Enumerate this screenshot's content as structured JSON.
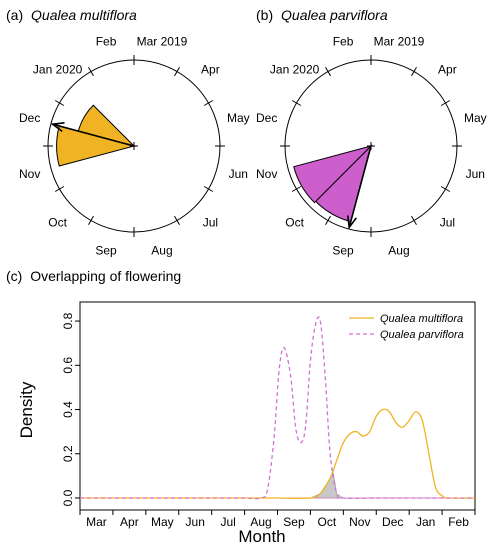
{
  "chart_data": [
    {
      "type": "circular-histogram",
      "panel_label": "(a)",
      "title": "Qualea multiflora",
      "month_labels": [
        "Mar 2019",
        "Apr",
        "May",
        "Jun",
        "Jul",
        "Aug",
        "Sep",
        "Oct",
        "Nov",
        "Dec",
        "Jan 2020",
        "Feb"
      ],
      "fill_color": "#F0B323",
      "mean_vector_month": "Dec",
      "wedges": [
        {
          "from_month": "Nov",
          "to_month": "Dec",
          "relative_length": 0.9
        },
        {
          "from_month": "Dec",
          "to_month": "Jan 2020",
          "relative_length": 0.67
        }
      ]
    },
    {
      "type": "circular-histogram",
      "panel_label": "(b)",
      "title": "Qualea parviflora",
      "month_labels": [
        "Mar 2019",
        "Apr",
        "May",
        "Jun",
        "Jul",
        "Aug",
        "Sep",
        "Oct",
        "Nov",
        "Dec",
        "Jan 2020",
        "Feb"
      ],
      "fill_color": "#CC5FCC",
      "mean_vector_month": "Sep",
      "wedges": [
        {
          "from_month": "Sep",
          "to_month": "Oct",
          "relative_length": 0.91
        },
        {
          "from_month": "Oct",
          "to_month": "Nov",
          "relative_length": 0.93
        }
      ]
    },
    {
      "type": "line",
      "panel_label": "(c)",
      "title": "Overlapping of flowering",
      "xlabel": "Month",
      "ylabel": "Density",
      "categories": [
        "Mar",
        "Apr",
        "May",
        "Jun",
        "Jul",
        "Aug",
        "Sep",
        "Oct",
        "Nov",
        "Dec",
        "Jan",
        "Feb"
      ],
      "xlim": [
        0,
        12
      ],
      "ylim": [
        0,
        0.85
      ],
      "yticks": [
        "0.0",
        "0.2",
        "0.4",
        "0.6",
        "0.8"
      ],
      "ytick_values": [
        0,
        0.2,
        0.4,
        0.6,
        0.8
      ],
      "legend_position": "top-right",
      "overlap_fill": "#c8c8c8",
      "series": [
        {
          "name": "Qualea multiflora",
          "color": "#F0B323",
          "dash": "solid",
          "x": [
            0,
            1,
            2,
            3,
            4,
            5,
            6,
            7.0,
            7.3,
            7.6,
            7.8,
            8.0,
            8.2,
            8.4,
            8.6,
            8.8,
            9.0,
            9.2,
            9.4,
            9.6,
            9.8,
            10.0,
            10.2,
            10.4,
            10.6,
            10.8,
            11.0,
            11.2,
            12
          ],
          "y": [
            0,
            0,
            0,
            0,
            0,
            0,
            0,
            0.0,
            0.02,
            0.09,
            0.17,
            0.25,
            0.29,
            0.3,
            0.28,
            0.3,
            0.37,
            0.4,
            0.39,
            0.34,
            0.32,
            0.35,
            0.39,
            0.35,
            0.2,
            0.05,
            0.01,
            0.0,
            0
          ]
        },
        {
          "name": "Qualea parviflora",
          "color": "#D272D2",
          "dash": "dashed",
          "x": [
            0,
            1,
            2,
            3,
            4,
            5,
            5.5,
            5.7,
            5.9,
            6.05,
            6.2,
            6.4,
            6.55,
            6.7,
            6.85,
            7.0,
            7.15,
            7.3,
            7.45,
            7.6,
            7.8,
            8.0,
            9,
            10,
            11,
            12
          ],
          "y": [
            0,
            0,
            0,
            0,
            0,
            0,
            0.0,
            0.04,
            0.28,
            0.58,
            0.68,
            0.55,
            0.32,
            0.25,
            0.32,
            0.62,
            0.78,
            0.8,
            0.55,
            0.2,
            0.02,
            0.0,
            0,
            0,
            0,
            0
          ]
        }
      ]
    }
  ]
}
